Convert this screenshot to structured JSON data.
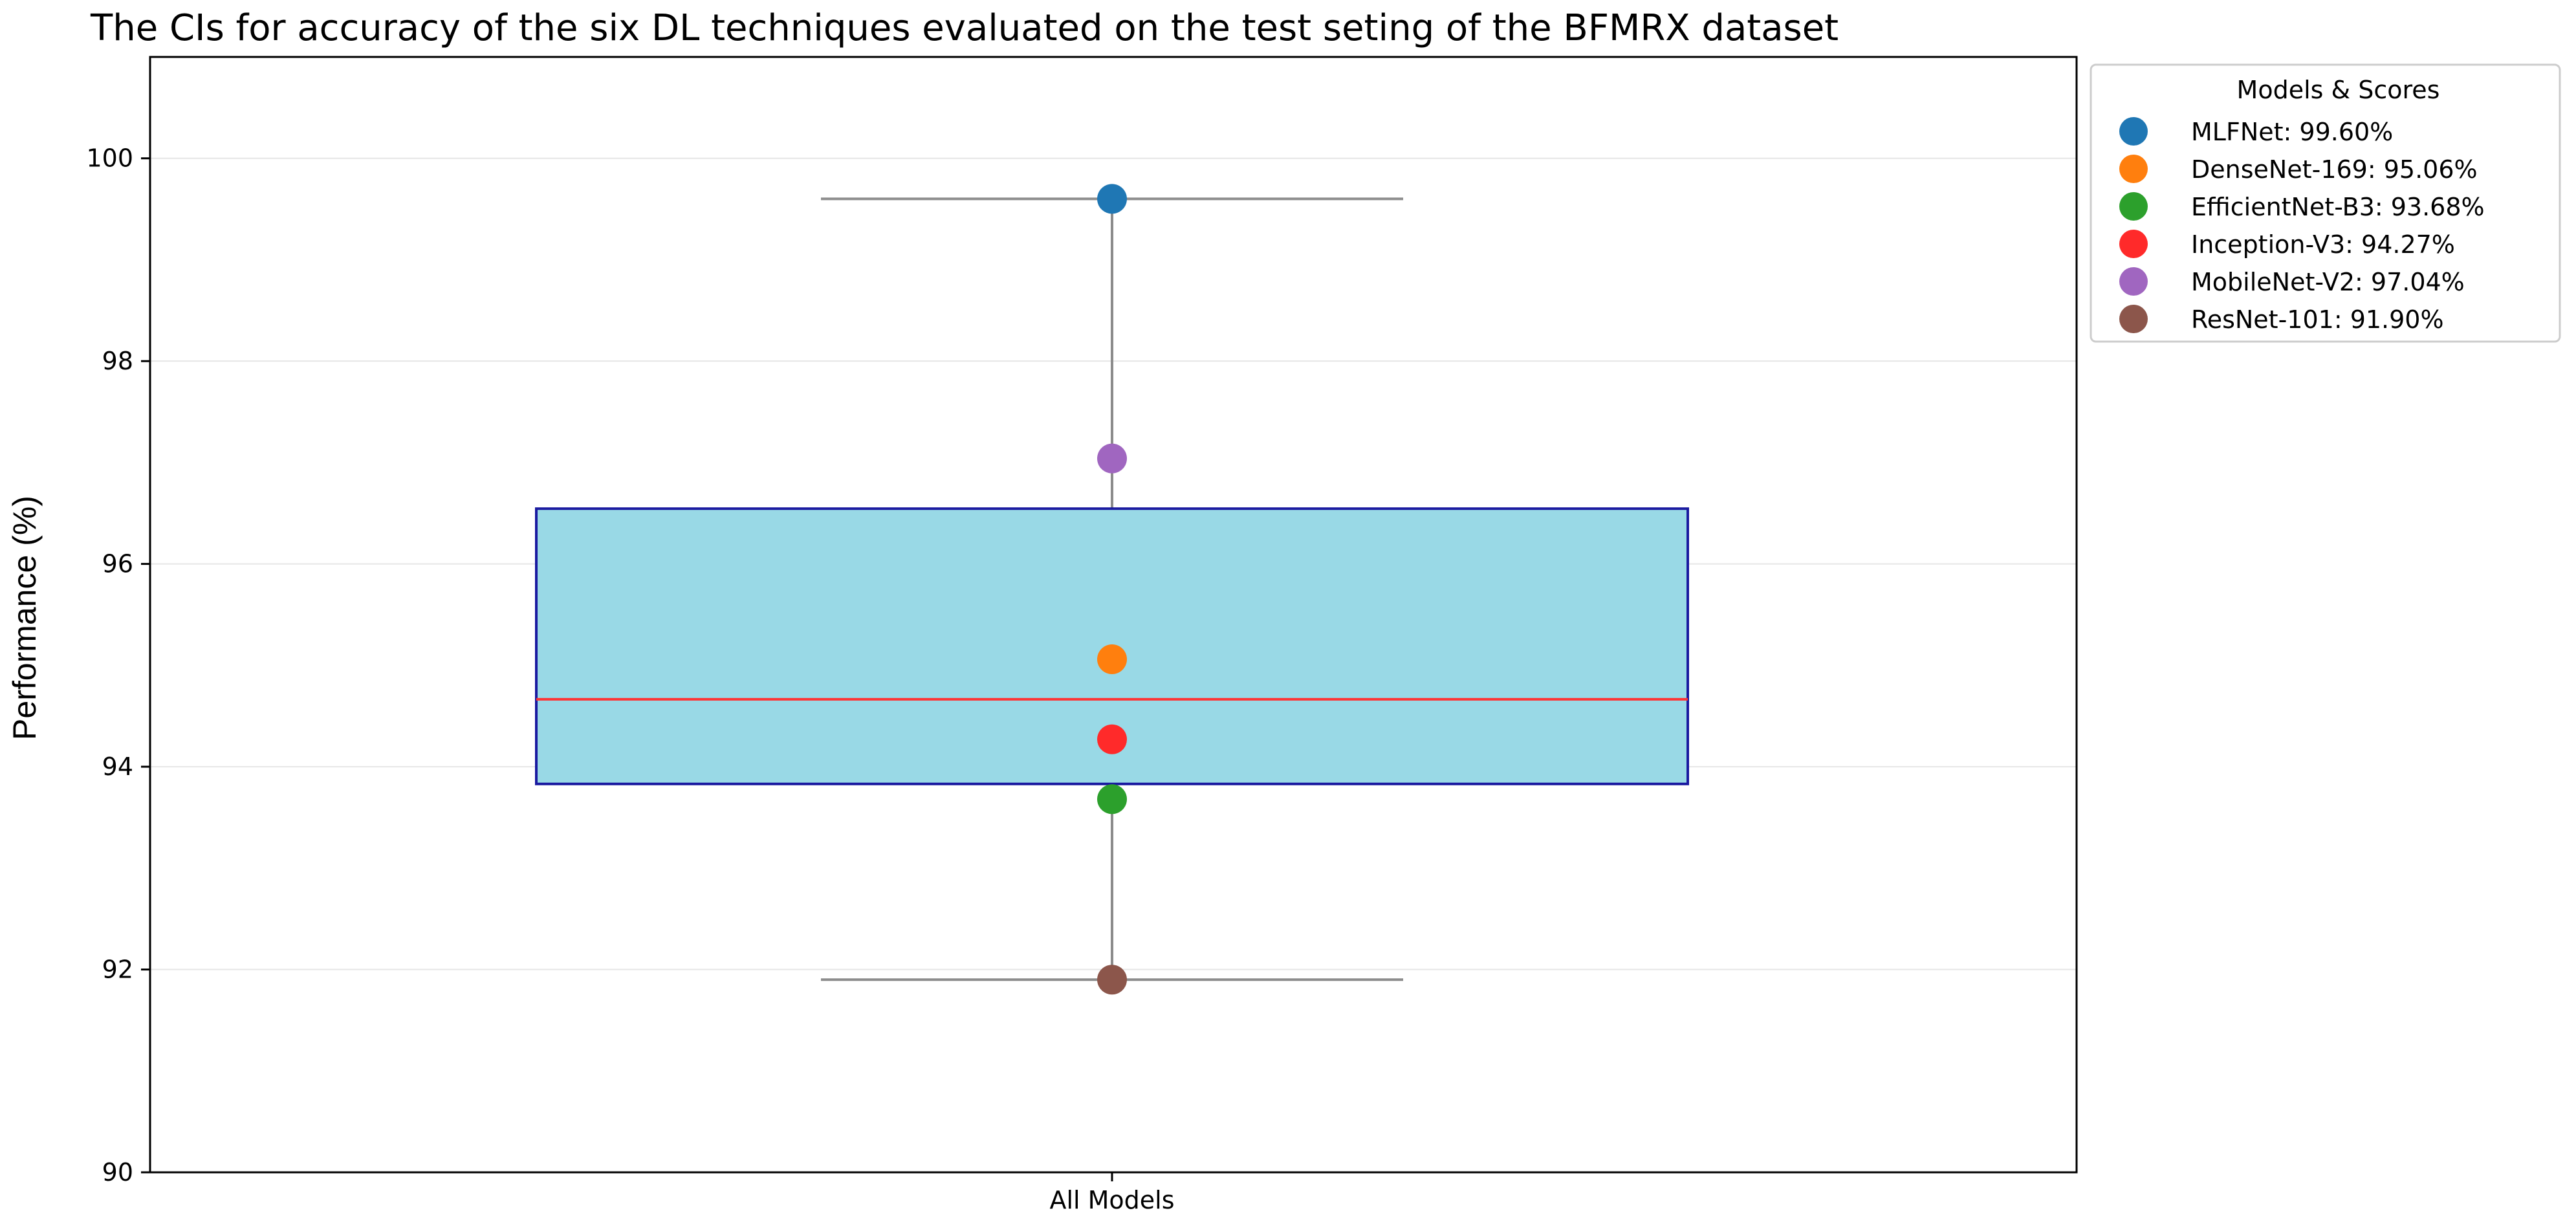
{
  "chart_data": {
    "type": "box",
    "title": "The CIs for accuracy of the six DL techniques evaluated on the test seting of the BFMRX dataset",
    "ylabel": "Performance (%)",
    "xlabel": "",
    "categories": [
      "All Models"
    ],
    "ylim": [
      90,
      101
    ],
    "yticks": [
      90,
      92,
      94,
      96,
      98,
      100
    ],
    "grid": "horizontal",
    "legend_title": "Models & Scores",
    "legend_position": "outside-top-right",
    "box": {
      "whisker_low": 91.9,
      "q1": 93.83,
      "median": 94.665,
      "q3": 96.545,
      "whisker_high": 99.6,
      "fill_color": "#99d9e6",
      "edge_color": "#1a1aa0",
      "median_color": "#ff3333",
      "whisker_color": "#8c8c8c"
    },
    "series": [
      {
        "name": "MLFNet",
        "label": "MLFNet: 99.60%",
        "value": 99.6,
        "color": "#1f77b4"
      },
      {
        "name": "DenseNet-169",
        "label": "DenseNet-169: 95.06%",
        "value": 95.06,
        "color": "#ff7f0e"
      },
      {
        "name": "EfficientNet-B3",
        "label": "EfficientNet-B3: 93.68%",
        "value": 93.68,
        "color": "#2ca02c"
      },
      {
        "name": "Inception-V3",
        "label": "Inception-V3: 94.27%",
        "value": 94.27,
        "color": "#ff2a2a"
      },
      {
        "name": "MobileNet-V2",
        "label": "MobileNet-V2: 97.04%",
        "value": 97.04,
        "color": "#a066c0"
      },
      {
        "name": "ResNet-101",
        "label": "ResNet-101: 91.90%",
        "value": 91.9,
        "color": "#8c564b"
      }
    ]
  }
}
